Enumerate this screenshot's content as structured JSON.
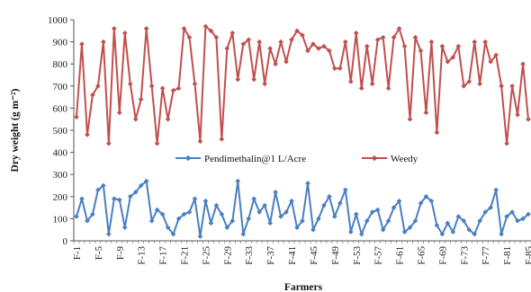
{
  "chart_data": {
    "type": "line",
    "xlabel": "Farmers",
    "ylabel": "Dry weight (g m⁻²)",
    "ylim": [
      0,
      1000
    ],
    "yticks": [
      0,
      100,
      200,
      300,
      400,
      500,
      600,
      700,
      800,
      900,
      1000
    ],
    "grid": false,
    "legend_position": "center-right",
    "x_tick_labels": [
      "F-1",
      "F-5",
      "F-9",
      "F-13",
      "F-17",
      "F-21",
      "F-25",
      "F-29",
      "F-33",
      "F-37",
      "F-41",
      "F-45",
      "F-49",
      "F-53",
      "F-57",
      "F-61",
      "F-65",
      "F-69",
      "F-73",
      "F-77",
      "F-81",
      "F-85"
    ],
    "x_tick_every": 4,
    "series": [
      {
        "name": "Pendimethalin@1 L/Acre",
        "color": "#4a7fc1",
        "marker": "diamond",
        "values": [
          110,
          190,
          90,
          120,
          230,
          250,
          30,
          190,
          185,
          60,
          200,
          220,
          250,
          270,
          90,
          140,
          120,
          60,
          30,
          100,
          120,
          130,
          190,
          20,
          180,
          80,
          160,
          120,
          60,
          90,
          270,
          30,
          100,
          190,
          130,
          160,
          80,
          220,
          110,
          130,
          180,
          60,
          90,
          260,
          50,
          100,
          160,
          200,
          110,
          170,
          230,
          40,
          120,
          30,
          90,
          130,
          140,
          50,
          90,
          150,
          180,
          40,
          60,
          90,
          170,
          200,
          180,
          70,
          30,
          80,
          40,
          110,
          90,
          50,
          30,
          90,
          130,
          150,
          230,
          30,
          110,
          130,
          90,
          100,
          120
        ]
      },
      {
        "name": "Weedy",
        "color": "#c0504d",
        "marker": "diamond",
        "values": [
          560,
          890,
          480,
          660,
          700,
          900,
          440,
          960,
          580,
          940,
          710,
          550,
          640,
          960,
          700,
          440,
          690,
          550,
          680,
          690,
          960,
          920,
          710,
          450,
          970,
          950,
          920,
          460,
          870,
          940,
          730,
          890,
          910,
          730,
          900,
          710,
          870,
          800,
          900,
          810,
          910,
          950,
          930,
          860,
          890,
          870,
          880,
          860,
          780,
          780,
          900,
          720,
          940,
          690,
          880,
          710,
          910,
          920,
          690,
          920,
          960,
          880,
          550,
          920,
          860,
          580,
          900,
          490,
          880,
          810,
          830,
          880,
          700,
          720,
          900,
          710,
          900,
          810,
          840,
          700,
          440,
          700,
          570,
          800,
          550
        ]
      }
    ]
  }
}
